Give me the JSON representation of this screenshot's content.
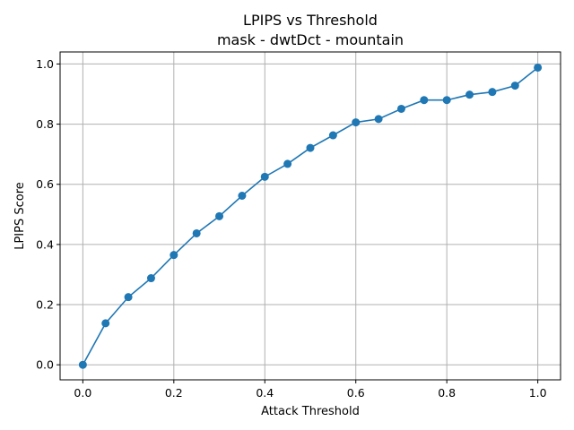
{
  "chart_data": {
    "type": "line",
    "title": "LPIPS vs Threshold",
    "subtitle": "mask - dwtDct - mountain",
    "xlabel": "Attack Threshold",
    "ylabel": "LPIPS Score",
    "xlim": [
      -0.05,
      1.05
    ],
    "ylim": [
      -0.05,
      1.04
    ],
    "xticks": [
      0.0,
      0.2,
      0.4,
      0.6,
      0.8,
      1.0
    ],
    "xtick_labels": [
      "0.0",
      "0.2",
      "0.4",
      "0.6",
      "0.8",
      "1.0"
    ],
    "yticks": [
      0.0,
      0.2,
      0.4,
      0.6,
      0.8,
      1.0
    ],
    "ytick_labels": [
      "0.0",
      "0.2",
      "0.4",
      "0.6",
      "0.8",
      "1.0"
    ],
    "grid": true,
    "color": "#1f77b4",
    "series": [
      {
        "x": [
          0.0,
          0.05,
          0.1,
          0.15,
          0.2,
          0.25,
          0.3,
          0.35,
          0.4,
          0.45,
          0.5,
          0.55,
          0.6,
          0.65,
          0.7,
          0.75,
          0.8,
          0.85,
          0.9,
          0.95,
          1.0
        ],
        "values": [
          0.0,
          0.138,
          0.225,
          0.288,
          0.365,
          0.437,
          0.494,
          0.562,
          0.625,
          0.668,
          0.721,
          0.763,
          0.806,
          0.817,
          0.851,
          0.88,
          0.88,
          0.898,
          0.907,
          0.928,
          0.988
        ]
      }
    ]
  }
}
